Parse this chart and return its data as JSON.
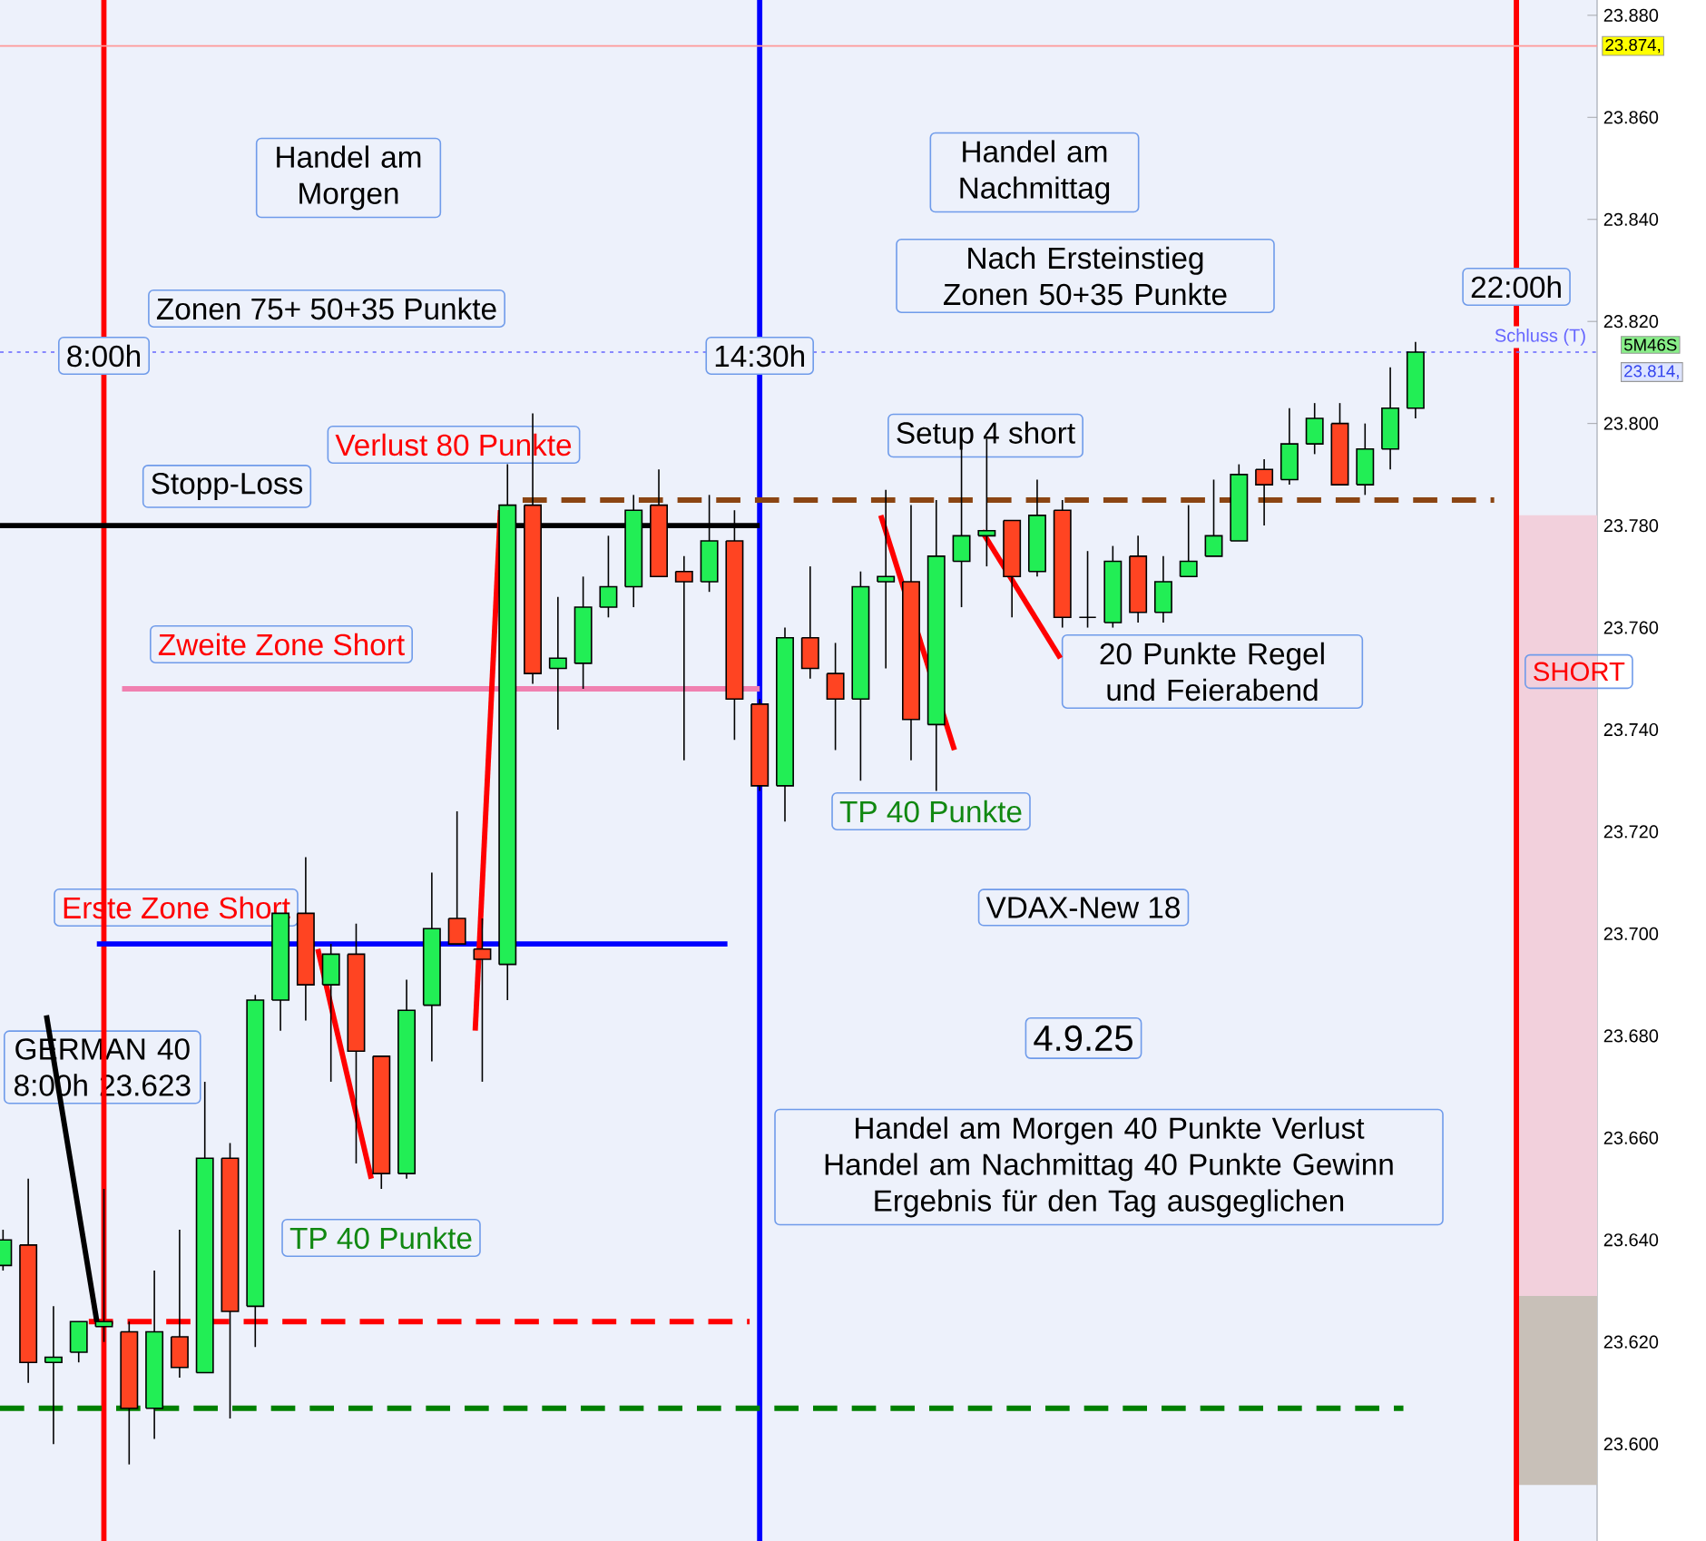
{
  "chart_data": {
    "type": "candlestick",
    "x": [
      7.0,
      7.25,
      7.5,
      7.75,
      8.0,
      8.25,
      8.5,
      8.75,
      9.0,
      9.25,
      9.5,
      9.75,
      10.0,
      10.25,
      10.5,
      10.75,
      11.0,
      11.25,
      11.5,
      11.75,
      12.0,
      12.25,
      12.5,
      12.75,
      13.0,
      13.25,
      13.5,
      13.75,
      14.0,
      14.25,
      14.5,
      14.75,
      15.0,
      15.25,
      15.5,
      15.75,
      16.0,
      16.25,
      16.5,
      16.75,
      17.0,
      17.25,
      17.5,
      17.75,
      18.0,
      18.25,
      18.5,
      18.75,
      19.0,
      19.25,
      19.5,
      19.75,
      20.0,
      20.25,
      20.5,
      20.75,
      21.0
    ],
    "ohlc": [
      [
        23635,
        23642,
        23634,
        23640
      ],
      [
        23639,
        23652,
        23612,
        23616
      ],
      [
        23616,
        23627,
        23600,
        23617
      ],
      [
        23618,
        23624,
        23616,
        23624
      ],
      [
        23623,
        23650,
        23620,
        23624
      ],
      [
        23622,
        23624,
        23596,
        23607
      ],
      [
        23607,
        23634,
        23601,
        23622
      ],
      [
        23621,
        23642,
        23613,
        23615
      ],
      [
        23614,
        23671,
        23614,
        23656
      ],
      [
        23656,
        23659,
        23605,
        23626
      ],
      [
        23627,
        23688,
        23619,
        23687
      ],
      [
        23687,
        23704,
        23681,
        23704
      ],
      [
        23704,
        23715,
        23683,
        23690
      ],
      [
        23690,
        23698,
        23671,
        23696
      ],
      [
        23696,
        23702,
        23655,
        23677
      ],
      [
        23676,
        23676,
        23650,
        23653
      ],
      [
        23653,
        23691,
        23652,
        23685
      ],
      [
        23686,
        23712,
        23675,
        23701
      ],
      [
        23703,
        23724,
        23698,
        23698
      ],
      [
        23697,
        23703,
        23671,
        23695
      ],
      [
        23694,
        23792,
        23687,
        23784
      ],
      [
        23784,
        23802,
        23749,
        23751
      ],
      [
        23752,
        23766,
        23740,
        23754
      ],
      [
        23753,
        23770,
        23748,
        23764
      ],
      [
        23764,
        23778,
        23762,
        23768
      ],
      [
        23768,
        23786,
        23764,
        23783
      ],
      [
        23784,
        23791,
        23770,
        23770
      ],
      [
        23771,
        23774,
        23734,
        23769
      ],
      [
        23769,
        23786,
        23767,
        23777
      ],
      [
        23777,
        23783,
        23738,
        23746
      ],
      [
        23745,
        23746,
        23728,
        23729
      ],
      [
        23729,
        23760,
        23722,
        23758
      ],
      [
        23758,
        23772,
        23750,
        23752
      ],
      [
        23751,
        23757,
        23736,
        23746
      ],
      [
        23746,
        23771,
        23730,
        23768
      ],
      [
        23769,
        23787,
        23752,
        23770
      ],
      [
        23769,
        23784,
        23734,
        23742
      ],
      [
        23741,
        23785,
        23728,
        23774
      ],
      [
        23773,
        23796,
        23764,
        23778
      ],
      [
        23778,
        23797,
        23772,
        23779
      ],
      [
        23781,
        23781,
        23762,
        23770
      ],
      [
        23771,
        23789,
        23770,
        23782
      ],
      [
        23783,
        23785,
        23760,
        23762
      ],
      [
        23762,
        23775,
        23760,
        23762
      ],
      [
        23761,
        23776,
        23760,
        23773
      ],
      [
        23774,
        23778,
        23761,
        23763
      ],
      [
        23763,
        23774,
        23761,
        23769
      ],
      [
        23770,
        23784,
        23770,
        23773
      ],
      [
        23774,
        23789,
        23774,
        23778
      ],
      [
        23777,
        23792,
        23777,
        23790
      ],
      [
        23791,
        23793,
        23780,
        23788
      ],
      [
        23789,
        23803,
        23788,
        23796
      ],
      [
        23796,
        23804,
        23794,
        23801
      ],
      [
        23800,
        23804,
        23788,
        23788
      ],
      [
        23788,
        23800,
        23786,
        23795
      ],
      [
        23795,
        23811,
        23791,
        23803
      ],
      [
        23803,
        23816,
        23801,
        23814
      ]
    ],
    "colors": [
      "#22ee55",
      "#ff4422",
      "#22ee55",
      "#22ee55",
      "#22ee55",
      "#ff4422",
      "#22ee55",
      "#ff4422",
      "#22ee55",
      "#ff4422",
      "#22ee55",
      "#22ee55",
      "#ff4422",
      "#22ee55",
      "#ff4422",
      "#ff4422",
      "#22ee55",
      "#22ee55",
      "#ff4422",
      "#ff4422",
      "#22ee55",
      "#ff4422",
      "#22ee55",
      "#22ee55",
      "#22ee55",
      "#22ee55",
      "#ff4422",
      "#ff4422",
      "#22ee55",
      "#ff4422",
      "#ff4422",
      "#22ee55",
      "#ff4422",
      "#ff4422",
      "#22ee55",
      "#22ee55",
      "#ff4422",
      "#22ee55",
      "#22ee55",
      "#22ee55",
      "#ff4422",
      "#22ee55",
      "#ff4422",
      "#000000",
      "#22ee55",
      "#ff4422",
      "#22ee55",
      "#22ee55",
      "#22ee55",
      "#22ee55",
      "#ff4422",
      "#22ee55",
      "#22ee55",
      "#ff4422",
      "#22ee55",
      "#22ee55",
      "#22ee55"
    ],
    "xlim": [
      6.97,
      22.8
    ],
    "ylim": [
      23581,
      23883
    ],
    "yticks": [
      {
        "value": 23600,
        "label": "23.600"
      },
      {
        "value": 23620,
        "label": "23.620"
      },
      {
        "value": 23640,
        "label": "23.640"
      },
      {
        "value": 23660,
        "label": "23.660"
      },
      {
        "value": 23680,
        "label": "23.680"
      },
      {
        "value": 23700,
        "label": "23.700"
      },
      {
        "value": 23720,
        "label": "23.720"
      },
      {
        "value": 23740,
        "label": "23.740"
      },
      {
        "value": 23760,
        "label": "23.760"
      },
      {
        "value": 23780,
        "label": "23.780"
      },
      {
        "value": 23800,
        "label": "23.800"
      },
      {
        "value": 23820,
        "label": "23.820"
      },
      {
        "value": 23840,
        "label": "23.840"
      },
      {
        "value": 23860,
        "label": "23.860"
      },
      {
        "value": 23880,
        "label": "23.880"
      }
    ],
    "tick_labels": "y",
    "series": [
      {
        "type": "bar",
        "x": [
          22.39
        ],
        "base": [
          23629
        ],
        "values": [
          153
        ],
        "color": "#f2d0dc"
      },
      {
        "type": "bar",
        "x": [
          22.39
        ],
        "base": [
          23592
        ],
        "values": [
          37
        ],
        "color": "#c8c0b8"
      },
      {
        "type": "line",
        "x": [
          6.97,
          14.5
        ],
        "values": [
          23780,
          23780
        ],
        "color": "#000000",
        "line_style": "solid"
      },
      {
        "type": "line",
        "x": [
          8.18,
          14.5
        ],
        "values": [
          23748,
          23748
        ],
        "color": "#f080b0",
        "line_style": "solid"
      },
      {
        "type": "line",
        "x": [
          7.93,
          14.18
        ],
        "values": [
          23698,
          23698
        ],
        "color": "#0000ff",
        "line_style": "solid"
      },
      {
        "type": "line",
        "x": [
          12.15,
          21.78
        ],
        "values": [
          23785,
          23785
        ],
        "color": "#8b4513",
        "line_style": "dashed"
      },
      {
        "type": "line",
        "x": [
          7.85,
          14.4
        ],
        "values": [
          23624,
          23624
        ],
        "color": "#ff0000",
        "line_style": "dashed"
      },
      {
        "type": "line",
        "x": [
          6.97,
          20.88
        ],
        "values": [
          23607,
          23607
        ],
        "color": "#008000",
        "line_style": "dashed"
      },
      {
        "type": "line",
        "x": [
          10.12,
          10.65
        ],
        "values": [
          23697,
          23652
        ],
        "color": "#ff0000",
        "line_style": "solid"
      },
      {
        "type": "line",
        "x": [
          11.68,
          11.93
        ],
        "values": [
          23681,
          23783
        ],
        "color": "#ff0000",
        "line_style": "solid"
      },
      {
        "type": "line",
        "x": [
          15.7,
          16.43
        ],
        "values": [
          23782,
          23736
        ],
        "color": "#ff0000",
        "line_style": "solid"
      },
      {
        "type": "line",
        "x": [
          16.7,
          17.48
        ],
        "values": [
          23779,
          23754
        ],
        "color": "#ff0000",
        "line_style": "solid"
      },
      {
        "type": "line",
        "x": [
          7.43,
          7.93
        ],
        "values": [
          23684,
          23624
        ],
        "color": "#000000",
        "line_style": "solid"
      }
    ],
    "ref_lines": [
      {
        "axis": "x",
        "value": 8,
        "label": "8:00h",
        "color": "#ff0000"
      },
      {
        "axis": "x",
        "value": 14.5,
        "label": "14:30h",
        "color": "#0000ff"
      },
      {
        "axis": "x",
        "value": 22,
        "label": "22:00h",
        "color": "#ff0000"
      },
      {
        "axis": "y",
        "value": 23874,
        "label": "23.874,",
        "color": "#ff9999"
      },
      {
        "axis": "y",
        "value": 23814,
        "label": "Schluss (T)",
        "color": "#6666ff",
        "line_style": "dotted"
      }
    ],
    "annotations": [
      "Handel am Morgen",
      "Zonen 75+ 50+35 Punkte",
      "Handel am Nachmittag",
      "Nach Ersteinstieg Zonen 50+35 Punkte",
      "Verlust 80 Punkte",
      "Stopp-Loss",
      "Setup 4 short",
      "Zweite Zone Short",
      "20 Punkte Regel und Feierabend",
      "TP 40 Punkte",
      "Erste Zone Short",
      "VDAX-New 18",
      "GERMAN 40 8:00h 23.623",
      "4.9.25",
      "Handel am Morgen 40 Punkte Verlust Handel am Nachmittag 40 Punkte Gewinn Ergebnis für den Tag ausgeglichen",
      "TP 40 Punkte",
      "SHORT",
      "5M46S",
      "23.814,"
    ]
  }
}
